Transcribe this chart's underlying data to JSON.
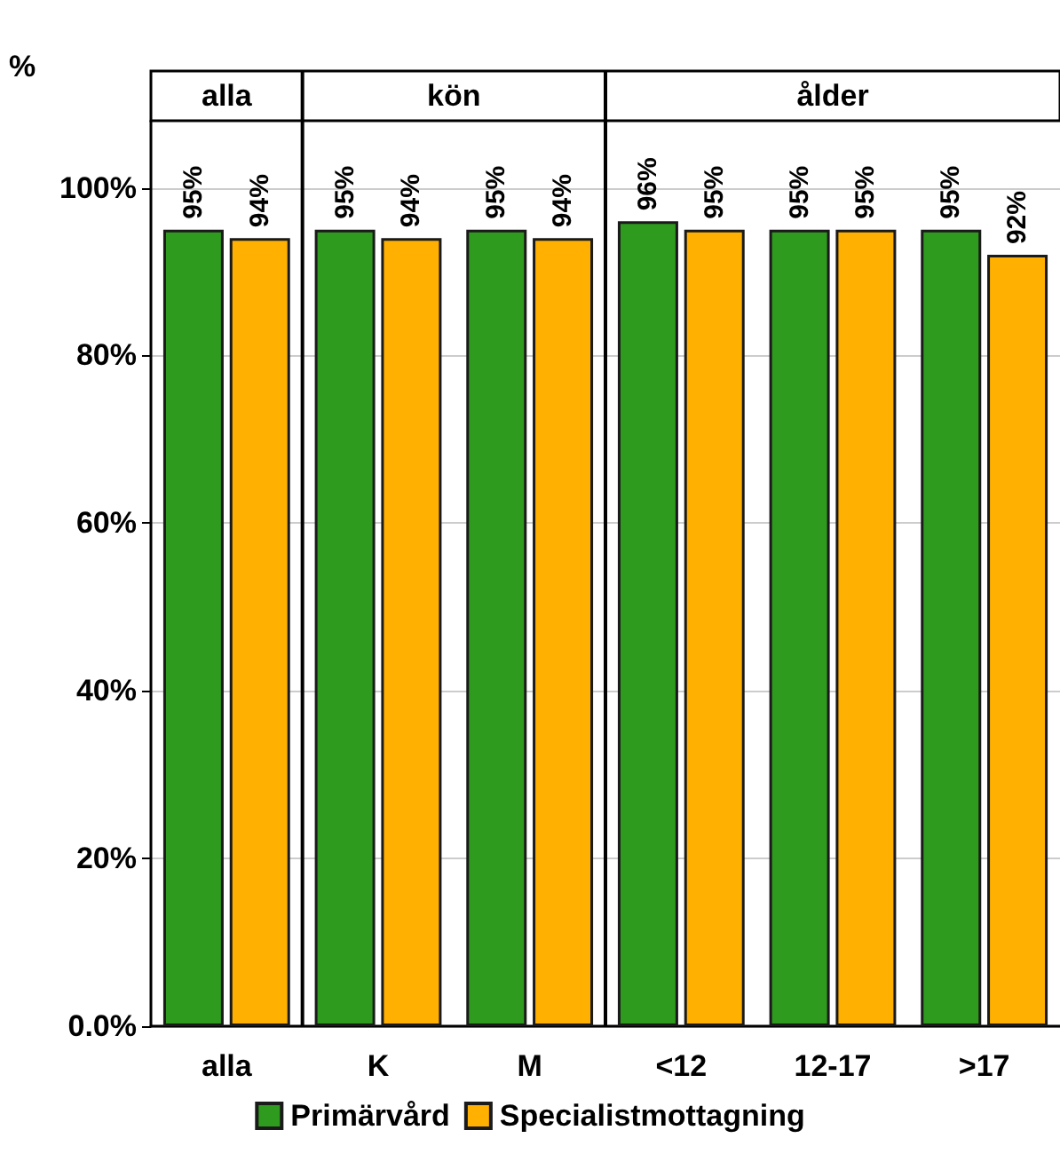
{
  "chart_data": {
    "type": "bar",
    "ylabel": "%",
    "categories": [
      "alla",
      "K",
      "M",
      "<12",
      "12-17",
      ">17"
    ],
    "series": [
      {
        "name": "Primärvård",
        "color": "#2e9a1e",
        "values": [
          95,
          95,
          95,
          96,
          95,
          95
        ],
        "value_labels": [
          "95%",
          "95%",
          "95%",
          "96%",
          "95%",
          "95%"
        ]
      },
      {
        "name": "Specialistmottagning",
        "color": "#ffb000",
        "values": [
          94,
          94,
          94,
          95,
          95,
          92
        ],
        "value_labels": [
          "94%",
          "94%",
          "94%",
          "95%",
          "95%",
          "92%"
        ]
      }
    ],
    "ylim": [
      0,
      108
    ],
    "yticks": [
      {
        "value": 0,
        "label": "0.0%"
      },
      {
        "value": 20,
        "label": "20%"
      },
      {
        "value": 40,
        "label": "40%"
      },
      {
        "value": 60,
        "label": "60%"
      },
      {
        "value": 80,
        "label": "80%"
      },
      {
        "value": 100,
        "label": "100%"
      }
    ],
    "annotations": [
      "alla",
      "kön",
      "ålder"
    ],
    "grid": "y",
    "legend": "bottom"
  }
}
